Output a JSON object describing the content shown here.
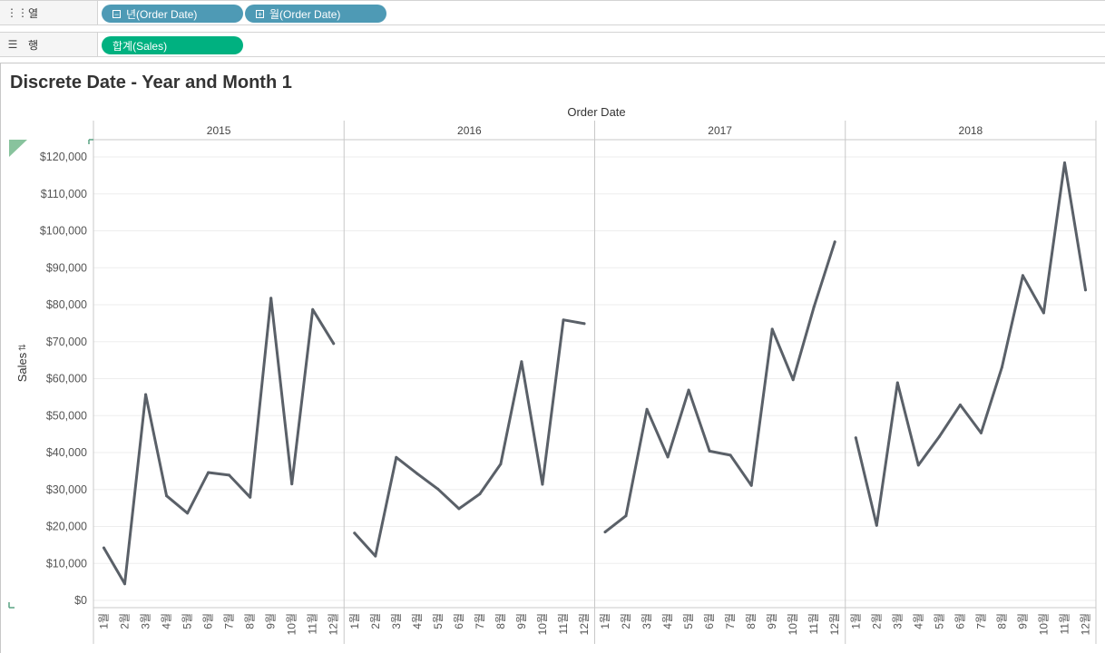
{
  "shelves": {
    "columns": {
      "label": "열",
      "icon": "columns-icon",
      "pills": [
        {
          "label": "년(Order Date)",
          "icon": "minus-box-icon"
        },
        {
          "label": "월(Order Date)",
          "icon": "plus-box-icon"
        }
      ]
    },
    "rows": {
      "label": "행",
      "icon": "rows-icon",
      "pills": [
        {
          "label": "합계(Sales)"
        }
      ]
    }
  },
  "colors": {
    "pill_blue": "#4e9ab5",
    "pill_green": "#00b180",
    "line": "#5a6068",
    "grid": "#ededed"
  },
  "chart_data": {
    "type": "line",
    "title": "Discrete Date - Year and Month 1",
    "column_header": "Order Date",
    "ylabel": "Sales",
    "ylim": [
      0,
      120000
    ],
    "yticks": [
      0,
      10000,
      20000,
      30000,
      40000,
      50000,
      60000,
      70000,
      80000,
      90000,
      100000,
      110000,
      120000
    ],
    "ytick_labels": [
      "$0",
      "$10,000",
      "$20,000",
      "$30,000",
      "$40,000",
      "$50,000",
      "$60,000",
      "$70,000",
      "$80,000",
      "$90,000",
      "$100,000",
      "$110,000",
      "$120,000"
    ],
    "month_labels": [
      "1월",
      "2월",
      "3월",
      "4월",
      "5월",
      "6월",
      "7월",
      "8월",
      "9월",
      "10월",
      "11월",
      "12월"
    ],
    "panels": [
      {
        "year": "2015",
        "values": [
          14200,
          4500,
          55700,
          28300,
          23600,
          34600,
          33900,
          27900,
          81800,
          31500,
          78700,
          69500
        ]
      },
      {
        "year": "2016",
        "values": [
          18200,
          12000,
          38700,
          34300,
          30100,
          24800,
          28800,
          36900,
          64600,
          31400,
          75900,
          74900
        ]
      },
      {
        "year": "2017",
        "values": [
          18500,
          22900,
          51700,
          38800,
          56900,
          40400,
          39300,
          31100,
          73400,
          59700,
          79400,
          97000
        ]
      },
      {
        "year": "2018",
        "values": [
          44000,
          20300,
          58900,
          36600,
          44300,
          52900,
          45300,
          63100,
          87900,
          77800,
          118400,
          84000
        ]
      }
    ]
  }
}
